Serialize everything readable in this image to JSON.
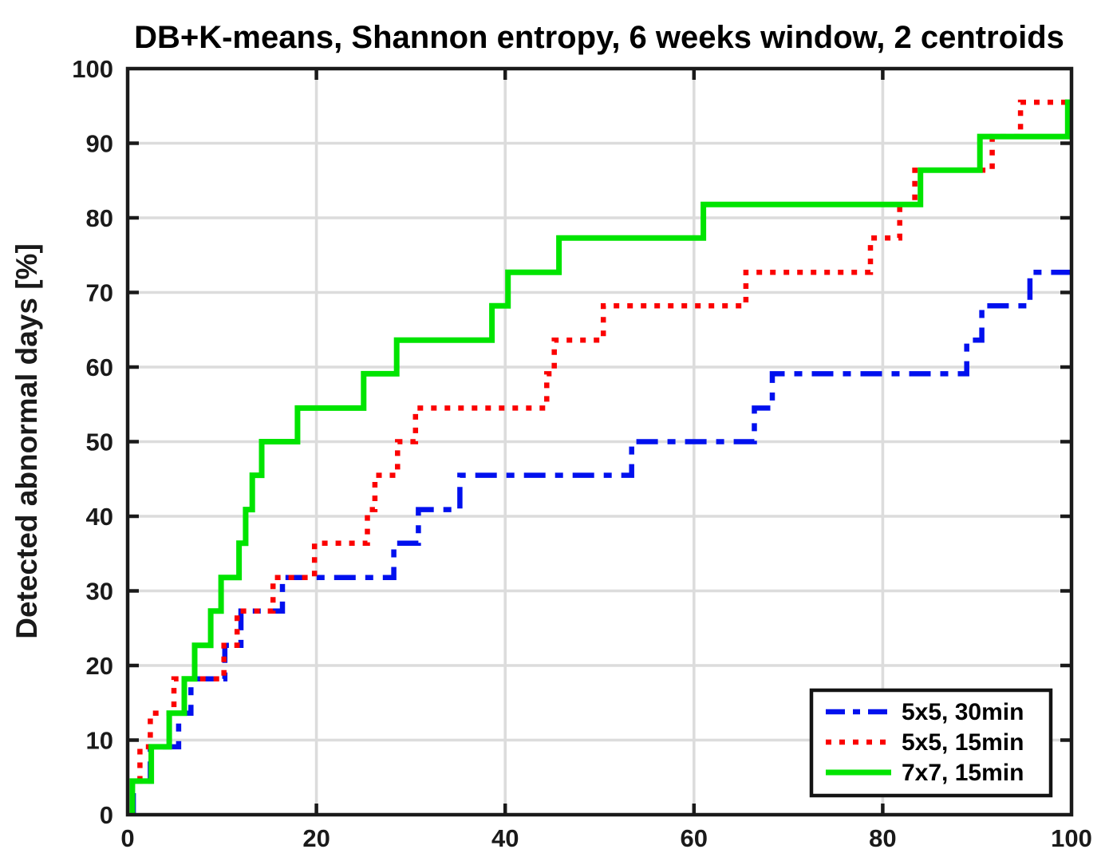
{
  "chart_data": {
    "type": "line",
    "subtype": "step",
    "title": "DB+K-means, Shannon entropy, 6 weeks window, 2 centroids",
    "xlabel": "",
    "ylabel": "Detected abnormal days [%]",
    "xlim": [
      0,
      100
    ],
    "ylim": [
      0,
      100
    ],
    "x_ticks": [
      0,
      20,
      40,
      60,
      80,
      100
    ],
    "y_ticks": [
      0,
      10,
      20,
      30,
      40,
      50,
      60,
      70,
      80,
      90,
      100
    ],
    "grid": true,
    "legend_position": "bottom-right",
    "series": [
      {
        "name": "5x5, 30min",
        "color": "#0010ee",
        "style": "dash-dot",
        "steps": [
          [
            0.6,
            4.5
          ],
          [
            2.4,
            9.1
          ],
          [
            5.4,
            13.6
          ],
          [
            6.7,
            18.2
          ],
          [
            10.3,
            22.7
          ],
          [
            12.0,
            27.3
          ],
          [
            16.4,
            31.8
          ],
          [
            28.2,
            36.4
          ],
          [
            30.8,
            40.9
          ],
          [
            35.2,
            45.5
          ],
          [
            53.4,
            50.0
          ],
          [
            66.4,
            54.5
          ],
          [
            68.3,
            59.1
          ],
          [
            88.9,
            63.6
          ],
          [
            90.5,
            68.2
          ],
          [
            95.6,
            72.7
          ]
        ],
        "final_value": 72.7
      },
      {
        "name": "5x5, 15min",
        "color": "#fb0000",
        "style": "dotted",
        "steps": [
          [
            0.5,
            4.5
          ],
          [
            1.3,
            9.1
          ],
          [
            2.4,
            13.6
          ],
          [
            4.9,
            18.2
          ],
          [
            10.2,
            22.7
          ],
          [
            11.6,
            27.3
          ],
          [
            15.4,
            31.8
          ],
          [
            19.8,
            36.4
          ],
          [
            25.4,
            40.9
          ],
          [
            26.2,
            45.5
          ],
          [
            28.6,
            50.0
          ],
          [
            30.5,
            54.5
          ],
          [
            44.4,
            59.1
          ],
          [
            45.2,
            63.6
          ],
          [
            50.4,
            68.2
          ],
          [
            65.5,
            72.7
          ],
          [
            78.7,
            77.3
          ],
          [
            81.8,
            81.8
          ],
          [
            83.4,
            86.4
          ],
          [
            91.6,
            90.9
          ],
          [
            94.6,
            95.5
          ]
        ],
        "final_value": 95.5
      },
      {
        "name": "7x7, 15min",
        "color": "#00e400",
        "style": "solid",
        "steps": [
          [
            0.5,
            4.5
          ],
          [
            2.5,
            9.1
          ],
          [
            4.4,
            13.6
          ],
          [
            6.0,
            18.2
          ],
          [
            7.1,
            22.7
          ],
          [
            8.8,
            27.3
          ],
          [
            9.9,
            31.8
          ],
          [
            11.8,
            36.4
          ],
          [
            12.5,
            40.9
          ],
          [
            13.2,
            45.5
          ],
          [
            14.2,
            50.0
          ],
          [
            18.0,
            54.5
          ],
          [
            25.0,
            59.1
          ],
          [
            28.5,
            63.6
          ],
          [
            38.6,
            68.2
          ],
          [
            40.3,
            72.7
          ],
          [
            45.7,
            77.3
          ],
          [
            61.0,
            81.8
          ],
          [
            84.0,
            86.4
          ],
          [
            90.3,
            90.9
          ],
          [
            99.6,
            95.5
          ]
        ],
        "final_value": 95.5
      }
    ]
  },
  "style": {
    "axis_color": "#1a1a1a",
    "grid_color": "#dcdcdc",
    "background": "#ffffff",
    "legend_border_color": "#141414"
  }
}
